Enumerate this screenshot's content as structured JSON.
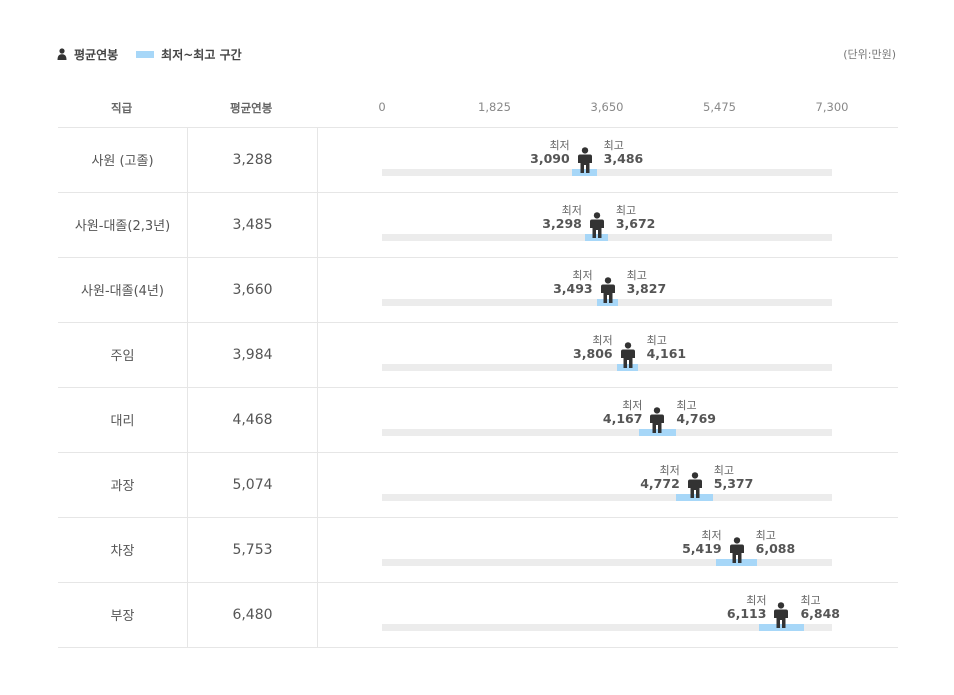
{
  "legend": {
    "avg_label": "평균연봉",
    "range_label": "최저~최고 구간",
    "unit": "(단위:만원)"
  },
  "headers": {
    "rank": "직급",
    "avg": "평균연봉"
  },
  "labels": {
    "min": "최저",
    "max": "최고"
  },
  "colors": {
    "range": "#a7d7f8",
    "track": "#ececec",
    "figure": "#333333"
  },
  "chart_data": {
    "type": "range-bar",
    "axis": {
      "min": 0,
      "max": 7300,
      "ticks": [
        "0",
        "1,825",
        "3,650",
        "5,475",
        "7,300"
      ],
      "tick_values": [
        0,
        1825,
        3650,
        5475,
        7300
      ]
    },
    "unit": "(단위:만원)",
    "rows": [
      {
        "rank": "사원 (고졸)",
        "avg": 3288,
        "avg_text": "3,288",
        "min": 3090,
        "min_text": "3,090",
        "max": 3486,
        "max_text": "3,486"
      },
      {
        "rank": "사원-대졸(2,3년)",
        "avg": 3485,
        "avg_text": "3,485",
        "min": 3298,
        "min_text": "3,298",
        "max": 3672,
        "max_text": "3,672"
      },
      {
        "rank": "사원-대졸(4년)",
        "avg": 3660,
        "avg_text": "3,660",
        "min": 3493,
        "min_text": "3,493",
        "max": 3827,
        "max_text": "3,827"
      },
      {
        "rank": "주임",
        "avg": 3984,
        "avg_text": "3,984",
        "min": 3806,
        "min_text": "3,806",
        "max": 4161,
        "max_text": "4,161"
      },
      {
        "rank": "대리",
        "avg": 4468,
        "avg_text": "4,468",
        "min": 4167,
        "min_text": "4,167",
        "max": 4769,
        "max_text": "4,769"
      },
      {
        "rank": "과장",
        "avg": 5074,
        "avg_text": "5,074",
        "min": 4772,
        "min_text": "4,772",
        "max": 5377,
        "max_text": "5,377"
      },
      {
        "rank": "차장",
        "avg": 5753,
        "avg_text": "5,753",
        "min": 5419,
        "min_text": "5,419",
        "max": 6088,
        "max_text": "6,088"
      },
      {
        "rank": "부장",
        "avg": 6480,
        "avg_text": "6,480",
        "min": 6113,
        "min_text": "6,113",
        "max": 6848,
        "max_text": "6,848"
      }
    ]
  }
}
